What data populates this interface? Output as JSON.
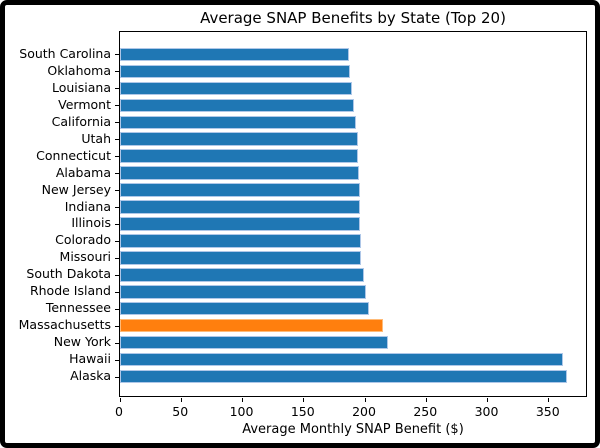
{
  "chart_data": {
    "type": "bar",
    "orientation": "horizontal",
    "title": "Average SNAP Benefits by State (Top 20)",
    "xlabel": "Average Monthly SNAP Benefit ($)",
    "categories": [
      "South Carolina",
      "Oklahoma",
      "Louisiana",
      "Vermont",
      "California",
      "Utah",
      "Connecticut",
      "Alabama",
      "New Jersey",
      "Indiana",
      "Illinois",
      "Colorado",
      "Missouri",
      "South Dakota",
      "Rhode Island",
      "Tennessee",
      "Massachusetts",
      "New York",
      "Hawaii",
      "Alaska"
    ],
    "values": [
      187,
      188,
      189,
      191,
      193,
      194,
      194,
      195,
      196,
      196,
      196,
      197,
      197,
      199,
      201,
      203,
      215,
      219,
      362,
      365
    ],
    "highlight": {
      "category": "Massachusetts",
      "color": "#ff7f0e",
      "edge_color": "#ffbb78"
    },
    "bar_color": "#1f77b4",
    "bar_edge_color": "#aec7e8",
    "x_ticks": [
      0,
      50,
      100,
      150,
      200,
      250,
      300,
      350
    ],
    "xlim": [
      0,
      382
    ],
    "grid": false,
    "legend": "none",
    "sort_order": "ascending-top-to-bottom"
  }
}
